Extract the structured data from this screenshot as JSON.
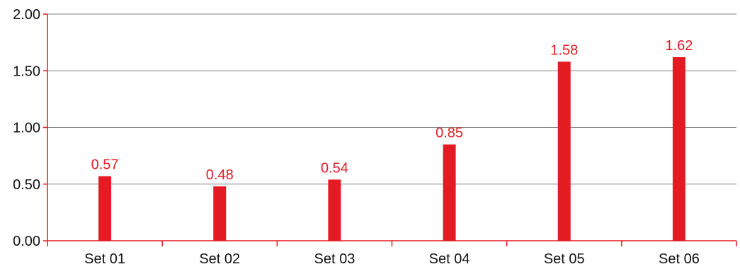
{
  "chart_data": {
    "type": "bar",
    "categories": [
      "Set 01",
      "Set 02",
      "Set 03",
      "Set 04",
      "Set 05",
      "Set 06"
    ],
    "values": [
      0.57,
      0.48,
      0.54,
      0.85,
      1.58,
      1.62
    ],
    "value_labels": [
      "0.57",
      "0.48",
      "0.54",
      "0.85",
      "1.58",
      "1.62"
    ],
    "title": "",
    "xlabel": "",
    "ylabel": "",
    "ylim": [
      0,
      2
    ],
    "yticks": [
      0,
      0.5,
      1,
      1.5,
      2
    ],
    "ytick_labels": [
      "0.00",
      "0.50",
      "1.00",
      "1.50",
      "2.00"
    ],
    "grid": true,
    "legend": "none",
    "colors": {
      "bar": "#e31b23",
      "axis": "#e31b23",
      "grid": "#808080",
      "data_label": "#e31b23",
      "tick_label": "#111111"
    }
  }
}
